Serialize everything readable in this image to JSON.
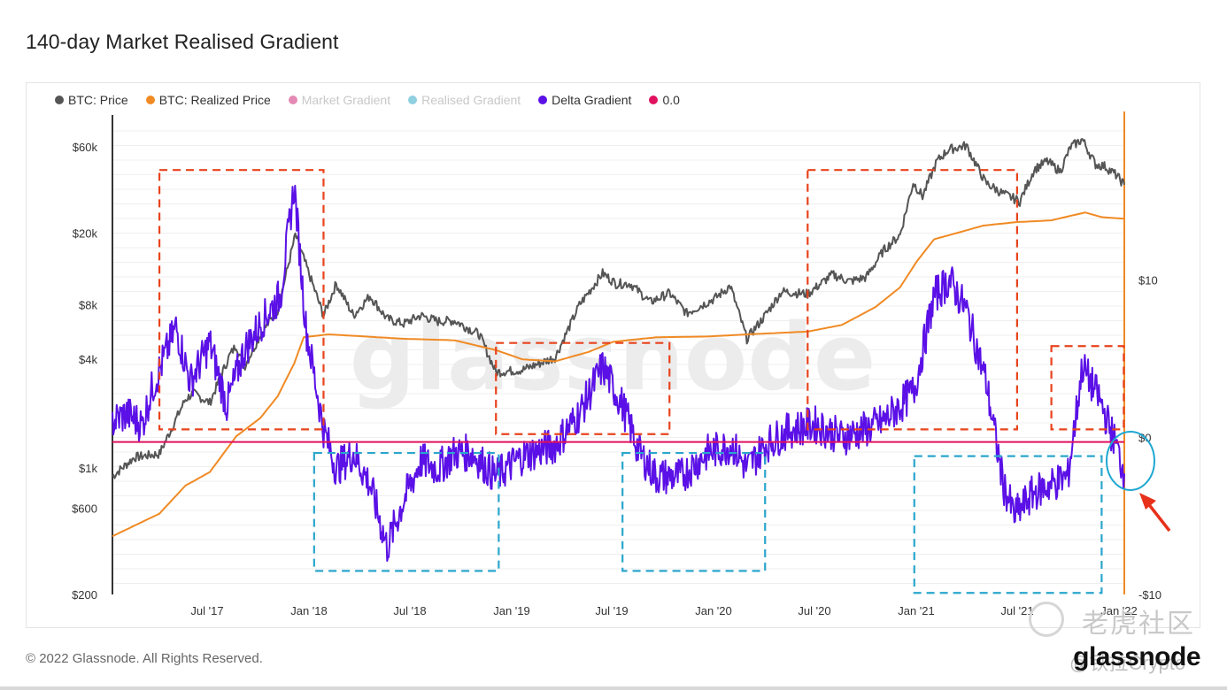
{
  "page": {
    "title": "140-day Market Realised Gradient"
  },
  "footer": {
    "copyright": "© 2022 Glassnode. All Rights Reserved.",
    "brand": "glassnode"
  },
  "watermark": {
    "center": "glassnode",
    "cn": "老虎社区",
    "sub": "@铁拉Crypto"
  },
  "colors": {
    "price": "#555555",
    "realized": "#f08a24",
    "market_gradient": "#d9629a",
    "realised_gradient": "#5bc0d8",
    "delta": "#5a10e6",
    "zero": "#e0115f",
    "box_red": "#e8431c",
    "box_cyan": "#2aa6cc",
    "circle": "#1ea7d2",
    "arrow": "#e8311a",
    "axis_right": "#f08a24"
  },
  "chart_data": {
    "type": "line",
    "title": "140-day Market Realised Gradient",
    "legend": [
      {
        "name": "BTC: Price",
        "color": "#555555",
        "faded": false
      },
      {
        "name": "BTC: Realized Price",
        "color": "#f08a24",
        "faded": false
      },
      {
        "name": "Market Gradient",
        "color": "#e48ab4",
        "faded": true
      },
      {
        "name": "Realised Gradient",
        "color": "#8fd0e0",
        "faded": true
      },
      {
        "name": "Delta Gradient",
        "color": "#5a10e6",
        "faded": false
      },
      {
        "name": "0.0",
        "color": "#e0115f",
        "faded": false
      }
    ],
    "legend_placement": "top-left",
    "x_ticks": [
      "Jul '17",
      "Jan '18",
      "Jul '18",
      "Jan '19",
      "Jul '19",
      "Jan '20",
      "Jul '20",
      "Jan '21",
      "Jul '21",
      "Jan '22"
    ],
    "x_range": [
      "2017-01-20",
      "2022-01-25"
    ],
    "y_left": {
      "scale": "log",
      "ticks": [
        "$200",
        "$600",
        "$1k",
        "$4k",
        "$8k",
        "$20k",
        "$60k"
      ],
      "tick_values": [
        200,
        600,
        1000,
        4000,
        8000,
        20000,
        60000
      ],
      "range": [
        200,
        90000
      ]
    },
    "y_right": {
      "scale": "linear",
      "ticks": [
        "-$10",
        "$0",
        "$10"
      ],
      "tick_values": [
        -10,
        0,
        10
      ],
      "range": [
        -10,
        20.5
      ]
    },
    "grid": true,
    "series": [
      {
        "name": "BTC: Price",
        "axis": "left",
        "x": [
          "2017-01-20",
          "2017-03-01",
          "2017-04-15",
          "2017-06-01",
          "2017-06-15",
          "2017-07-15",
          "2017-08-20",
          "2017-09-01",
          "2017-09-15",
          "2017-10-15",
          "2017-11-15",
          "2017-12-17",
          "2018-01-01",
          "2018-02-06",
          "2018-03-01",
          "2018-04-01",
          "2018-05-01",
          "2018-06-01",
          "2018-07-01",
          "2018-08-01",
          "2018-09-01",
          "2018-10-01",
          "2018-11-15",
          "2018-12-15",
          "2019-02-01",
          "2019-04-01",
          "2019-05-15",
          "2019-06-26",
          "2019-07-20",
          "2019-08-15",
          "2019-09-20",
          "2019-10-25",
          "2019-11-25",
          "2020-01-15",
          "2020-02-12",
          "2020-03-13",
          "2020-04-15",
          "2020-05-15",
          "2020-07-01",
          "2020-08-15",
          "2020-09-15",
          "2020-10-15",
          "2020-11-15",
          "2020-12-15",
          "2021-01-08",
          "2021-01-25",
          "2021-02-20",
          "2021-03-13",
          "2021-04-14",
          "2021-05-19",
          "2021-06-20",
          "2021-07-20",
          "2021-08-15",
          "2021-09-07",
          "2021-10-01",
          "2021-10-20",
          "2021-11-10",
          "2021-12-04",
          "2021-12-20",
          "2022-01-10",
          "2022-01-25"
        ],
        "values": [
          900,
          1150,
          1200,
          2400,
          2600,
          2300,
          4200,
          4800,
          3600,
          5500,
          7500,
          19500,
          14500,
          7000,
          10500,
          7000,
          9000,
          6700,
          6300,
          7000,
          6500,
          6550,
          5500,
          3400,
          3500,
          4100,
          8000,
          12000,
          10500,
          10500,
          8300,
          9300,
          7200,
          8700,
          10200,
          5200,
          7000,
          9500,
          9200,
          11800,
          10800,
          11400,
          16000,
          19500,
          38000,
          32000,
          50000,
          58000,
          61000,
          38000,
          33000,
          30000,
          45000,
          50000,
          44000,
          60000,
          66000,
          48000,
          47000,
          42000,
          37000
        ]
      },
      {
        "name": "BTC: Realized Price",
        "axis": "left",
        "x": [
          "2017-01-20",
          "2017-04-15",
          "2017-06-01",
          "2017-07-15",
          "2017-09-01",
          "2017-10-15",
          "2017-11-15",
          "2017-12-15",
          "2018-01-01",
          "2018-02-15",
          "2018-04-01",
          "2018-07-01",
          "2018-10-01",
          "2018-12-15",
          "2019-02-01",
          "2019-04-01",
          "2019-06-01",
          "2019-07-15",
          "2019-10-01",
          "2020-01-01",
          "2020-03-15",
          "2020-07-01",
          "2020-09-01",
          "2020-11-01",
          "2020-12-15",
          "2021-01-15",
          "2021-02-15",
          "2021-03-15",
          "2021-05-15",
          "2021-07-15",
          "2021-09-15",
          "2021-11-15",
          "2021-12-15",
          "2022-01-25"
        ],
        "values": [
          420,
          560,
          800,
          950,
          1500,
          1900,
          2500,
          3800,
          5300,
          5500,
          5400,
          5200,
          5100,
          4500,
          4000,
          3900,
          4400,
          5000,
          5300,
          5350,
          5500,
          5700,
          6200,
          7800,
          10000,
          14000,
          18500,
          19500,
          22000,
          23000,
          23500,
          26000,
          24500,
          24000
        ]
      },
      {
        "name": "Delta Gradient",
        "axis": "right",
        "x": [
          "2017-01-20",
          "2017-02-15",
          "2017-03-15",
          "2017-04-01",
          "2017-05-15",
          "2017-06-10",
          "2017-07-15",
          "2017-08-15",
          "2017-09-15",
          "2017-10-20",
          "2017-11-20",
          "2017-12-15",
          "2018-01-05",
          "2018-02-06",
          "2018-03-01",
          "2018-04-01",
          "2018-05-01",
          "2018-06-01",
          "2018-07-01",
          "2018-08-01",
          "2018-09-01",
          "2018-10-01",
          "2018-11-01",
          "2018-12-15",
          "2019-02-01",
          "2019-04-01",
          "2019-05-15",
          "2019-06-26",
          "2019-08-01",
          "2019-09-01",
          "2019-10-01",
          "2019-11-15",
          "2020-01-01",
          "2020-02-15",
          "2020-03-13",
          "2020-04-15",
          "2020-06-01",
          "2020-07-15",
          "2020-09-01",
          "2020-10-15",
          "2020-11-15",
          "2020-12-15",
          "2021-01-10",
          "2021-02-15",
          "2021-03-15",
          "2021-04-15",
          "2021-05-20",
          "2021-06-20",
          "2021-07-10",
          "2021-08-15",
          "2021-09-15",
          "2021-10-15",
          "2021-11-10",
          "2021-12-10",
          "2022-01-10",
          "2022-01-25"
        ],
        "values": [
          1.0,
          1.5,
          0.8,
          3.0,
          7.0,
          3.5,
          6.0,
          2.0,
          5.5,
          7.5,
          9.0,
          16.0,
          7.0,
          0.5,
          -2.0,
          -1.0,
          -3.0,
          -7.0,
          -4.0,
          -1.5,
          -2.0,
          -1.0,
          -1.0,
          -2.5,
          -1.2,
          -0.5,
          1.5,
          4.5,
          2.0,
          -1.0,
          -2.5,
          -2.5,
          -1.0,
          -0.5,
          -2.0,
          -0.5,
          0.5,
          0.8,
          0.0,
          0.5,
          1.0,
          2.0,
          3.0,
          9.0,
          10.0,
          8.0,
          3.5,
          -3.0,
          -5.0,
          -3.5,
          -3.0,
          -2.5,
          4.5,
          2.5,
          -0.5,
          -2.3
        ]
      },
      {
        "name": "0.0",
        "axis": "right",
        "x": [
          "2017-01-20",
          "2022-01-25"
        ],
        "values": [
          -0.3,
          -0.3
        ]
      }
    ],
    "annotations": [
      {
        "type": "box",
        "style": "dashed",
        "color": "#e8431c",
        "x": [
          "2017-04-15",
          "2018-02-06"
        ],
        "y_right": [
          0.5,
          17.0
        ]
      },
      {
        "type": "box",
        "style": "dashed",
        "color": "#e8431c",
        "x": [
          "2018-12-15",
          "2019-10-25"
        ],
        "y_right": [
          0.2,
          6.0
        ]
      },
      {
        "type": "box",
        "style": "dashed",
        "color": "#e8431c",
        "x": [
          "2020-07-01",
          "2021-07-15"
        ],
        "y_right": [
          0.5,
          17.0
        ]
      },
      {
        "type": "box",
        "style": "dashed",
        "color": "#e8431c",
        "x": [
          "2021-09-15",
          "2022-01-24"
        ],
        "y_right": [
          0.5,
          5.8
        ]
      },
      {
        "type": "box",
        "style": "dashed",
        "color": "#2aa6cc",
        "x": [
          "2018-01-20",
          "2018-12-20"
        ],
        "y_right": [
          -8.5,
          -1.0
        ]
      },
      {
        "type": "box",
        "style": "dashed",
        "color": "#2aa6cc",
        "x": [
          "2019-08-01",
          "2020-04-15"
        ],
        "y_right": [
          -8.5,
          -1.0
        ]
      },
      {
        "type": "box",
        "style": "dashed",
        "color": "#2aa6cc",
        "x": [
          "2021-01-10",
          "2021-12-15"
        ],
        "y_right": [
          -9.9,
          -1.2
        ]
      },
      {
        "type": "ellipse",
        "color": "#1ea7d2",
        "x": "2022-01-28",
        "y_right": -1.5
      },
      {
        "type": "arrow",
        "color": "#e8311a",
        "points_to": "ellipse"
      }
    ]
  }
}
